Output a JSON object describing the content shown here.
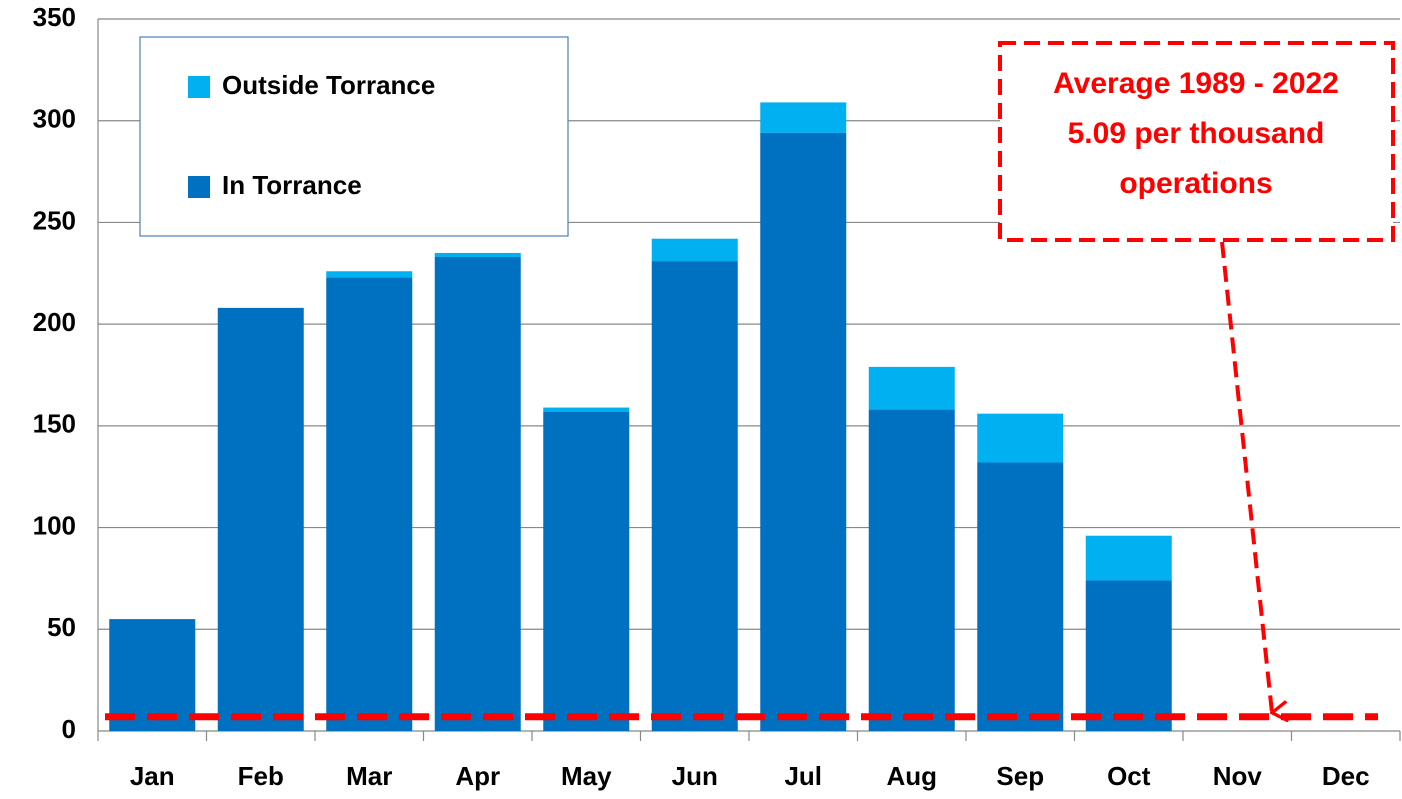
{
  "chart_data": {
    "type": "stacked_bar",
    "categories": [
      "Jan",
      "Feb",
      "Mar",
      "Apr",
      "May",
      "Jun",
      "Jul",
      "Aug",
      "Sep",
      "Oct",
      "Nov",
      "Dec"
    ],
    "series": [
      {
        "name": "In Torrance",
        "color": "#0070c0",
        "values": [
          55,
          208,
          223,
          233,
          157,
          231,
          294,
          158,
          132,
          74,
          null,
          null
        ]
      },
      {
        "name": "Outside Torrance",
        "color": "#00b0f0",
        "values": [
          0,
          0,
          3,
          2,
          2,
          11,
          15,
          21,
          24,
          22,
          null,
          null
        ]
      }
    ],
    "ylim": [
      0,
      350
    ],
    "yticks": [
      0,
      50,
      100,
      150,
      200,
      250,
      300,
      350
    ],
    "grid": true,
    "average_line": {
      "value": 7,
      "color": "#ff0000"
    },
    "annotation": {
      "lines": [
        "Average 1989 - 2022",
        "5.09 per thousand",
        "operations"
      ],
      "color": "#ff0000"
    }
  }
}
